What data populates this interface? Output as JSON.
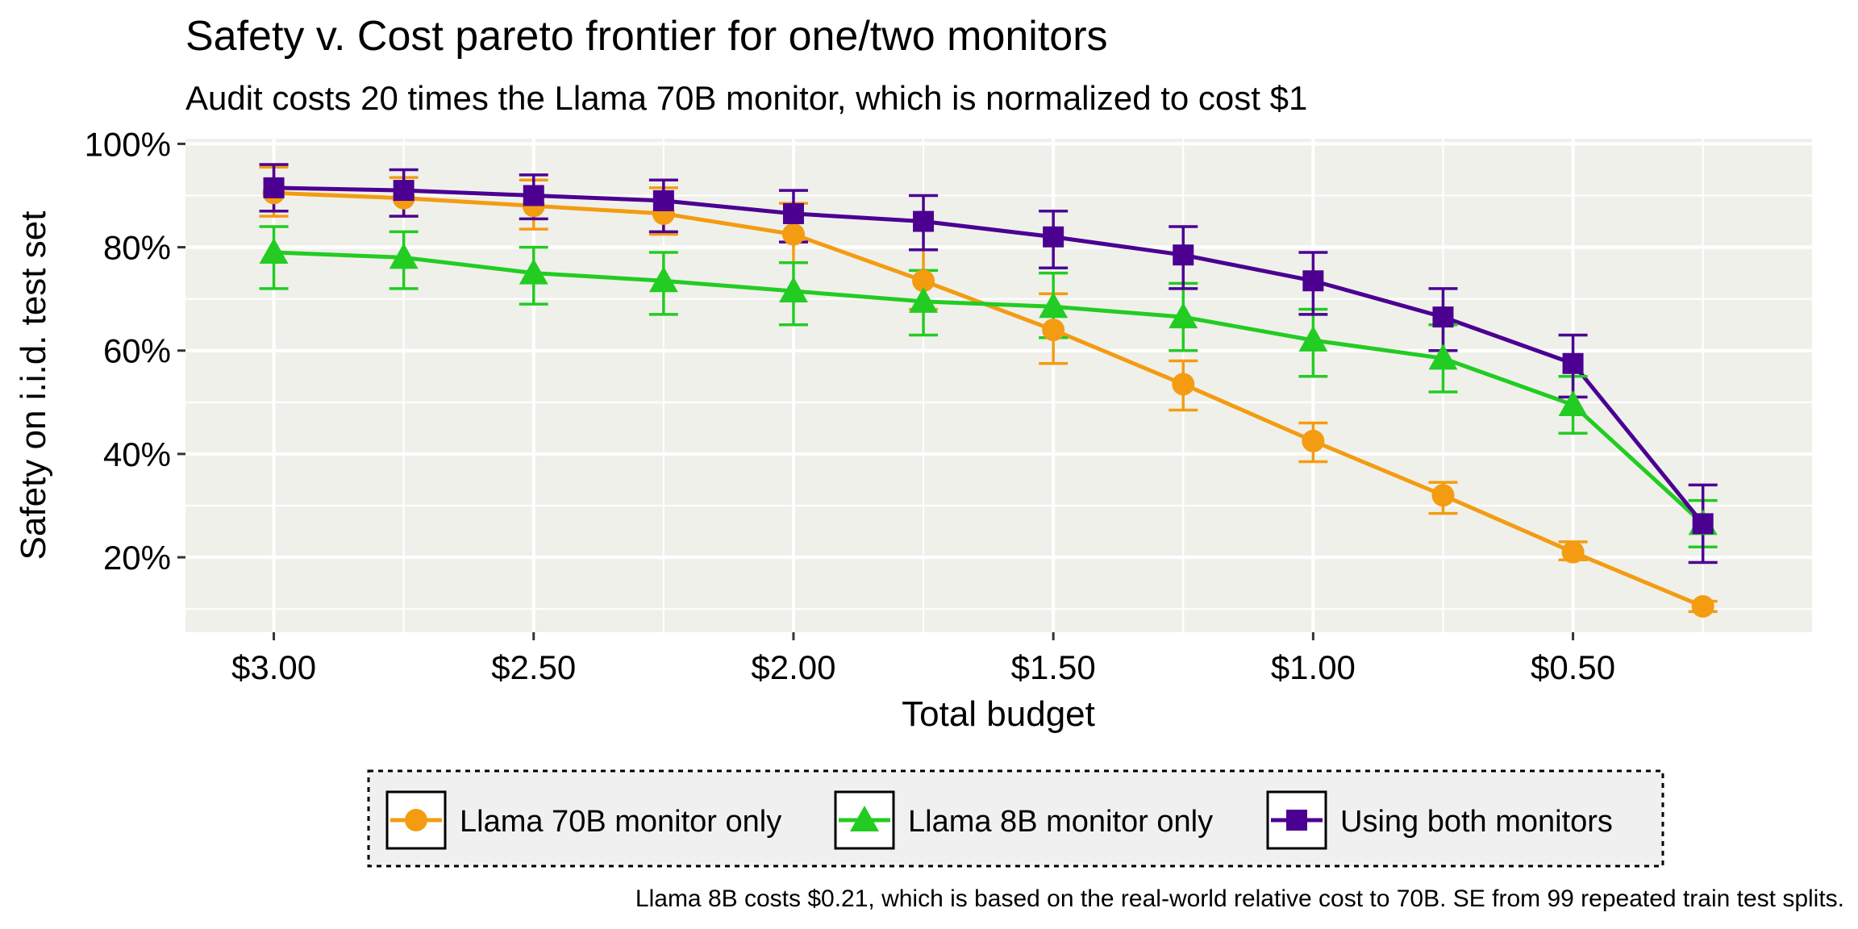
{
  "chart_data": {
    "type": "line",
    "title": "Safety v. Cost pareto frontier for one/two monitors",
    "subtitle": "Audit costs 20 times the Llama 70B monitor, which is normalized to cost $1",
    "xlabel": "Total budget",
    "ylabel": "Safety on i.i.d. test set",
    "caption": "Llama 8B costs $0.21, which is based on the real-world relative cost to 70B. SE from 99 repeated train test splits.",
    "x_reversed": true,
    "xlim": [
      0.04,
      3.17
    ],
    "ylim": [
      5.5,
      101
    ],
    "x_ticks": [
      {
        "value": 3.0,
        "label": "$3.00"
      },
      {
        "value": 2.5,
        "label": "$2.50"
      },
      {
        "value": 2.0,
        "label": "$2.00"
      },
      {
        "value": 1.5,
        "label": "$1.50"
      },
      {
        "value": 1.0,
        "label": "$1.00"
      },
      {
        "value": 0.5,
        "label": "$0.50"
      }
    ],
    "y_ticks": [
      {
        "value": 20,
        "label": "20%"
      },
      {
        "value": 40,
        "label": "40%"
      },
      {
        "value": 60,
        "label": "60%"
      },
      {
        "value": 80,
        "label": "80%"
      },
      {
        "value": 100,
        "label": "100%"
      }
    ],
    "grid": true,
    "legend_position": "bottom",
    "x": [
      3.0,
      2.75,
      2.5,
      2.25,
      2.0,
      1.75,
      1.5,
      1.25,
      1.0,
      0.75,
      0.5,
      0.25
    ],
    "series": [
      {
        "name": "Llama 70B monitor only",
        "color": "#F39C12",
        "marker": "circle",
        "values": [
          90.5,
          89.5,
          88.0,
          86.5,
          82.5,
          73.5,
          64.0,
          53.5,
          42.5,
          32.0,
          21.0,
          10.5
        ],
        "lower": [
          86.0,
          86.0,
          83.5,
          82.5,
          77.0,
          68.0,
          57.5,
          48.5,
          38.5,
          28.5,
          19.5,
          9.5
        ],
        "upper": [
          95.5,
          93.5,
          93.0,
          91.5,
          88.5,
          79.5,
          71.0,
          58.0,
          46.0,
          34.5,
          23.0,
          11.5
        ]
      },
      {
        "name": "Llama 8B monitor only",
        "color": "#22CC22",
        "marker": "triangle",
        "values": [
          79.0,
          78.0,
          75.0,
          73.5,
          71.5,
          69.5,
          68.5,
          66.5,
          62.0,
          58.5,
          49.5,
          26.5
        ],
        "lower": [
          72.0,
          72.0,
          69.0,
          67.0,
          65.0,
          63.0,
          62.5,
          60.0,
          55.0,
          52.0,
          44.0,
          22.0
        ],
        "upper": [
          84.0,
          83.0,
          80.0,
          79.0,
          77.0,
          75.5,
          75.0,
          73.0,
          68.0,
          65.0,
          55.0,
          31.0
        ]
      },
      {
        "name": "Using both monitors",
        "color": "#4B0092",
        "marker": "square",
        "values": [
          91.5,
          91.0,
          90.0,
          89.0,
          86.5,
          85.0,
          82.0,
          78.5,
          73.5,
          66.5,
          57.5,
          26.5
        ],
        "lower": [
          87.0,
          86.0,
          85.5,
          83.0,
          81.0,
          79.5,
          76.0,
          72.0,
          67.0,
          60.0,
          51.0,
          19.0
        ],
        "upper": [
          96.0,
          95.0,
          94.0,
          93.0,
          91.0,
          90.0,
          87.0,
          84.0,
          79.0,
          72.0,
          63.0,
          34.0
        ]
      }
    ]
  }
}
